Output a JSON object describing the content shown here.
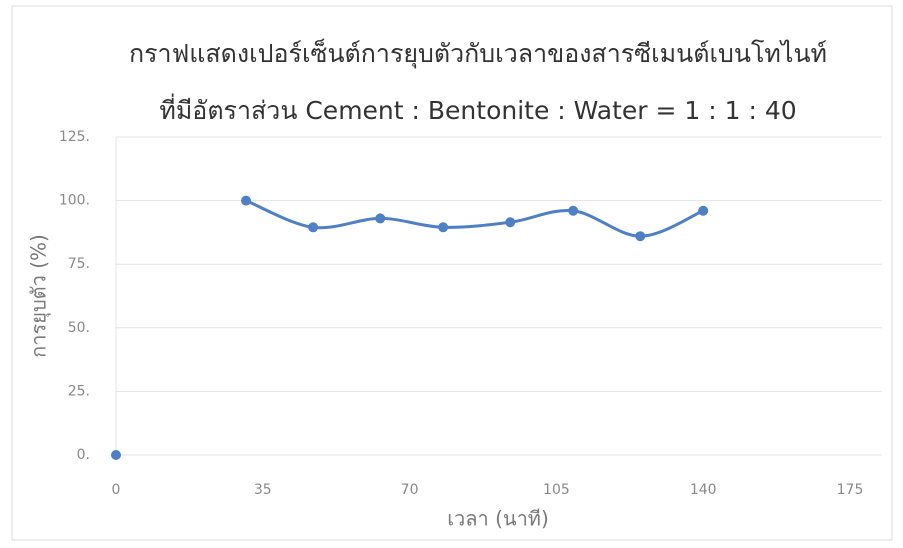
{
  "chart_data": {
    "type": "line",
    "title": "กราฟแสดงเปอร์เซ็นต์การยุบตัวกับเวลาของสารซีเมนต์เบนโทไนท์",
    "subtitle": "ที่มีอัตราส่วน Cement : Bentonite : Water  =  1 : 1 : 40",
    "x_label": "เวลา (นาที)",
    "y_label": "การยุบตัว (%)",
    "series": [
      {
        "color": "#4f7fc4",
        "x": [
          0
        ],
        "values": [
          0
        ]
      },
      {
        "color": "#4f7fc4",
        "x": [
          31,
          47,
          63,
          78,
          94,
          109,
          125,
          140
        ],
        "values": [
          100,
          89.5,
          93,
          89.5,
          91.5,
          96,
          86,
          96
        ]
      }
    ],
    "xlim": [
      0,
      175
    ],
    "xticks": [
      0,
      35,
      70,
      105,
      140,
      175
    ],
    "ylim": [
      0,
      125
    ],
    "yticks": [
      {
        "value": 0,
        "label": "0."
      },
      {
        "value": 25,
        "label": "25."
      },
      {
        "value": 50,
        "label": "50."
      },
      {
        "value": 75,
        "label": "75."
      },
      {
        "value": 100,
        "label": "100."
      },
      {
        "value": 125,
        "label": "125."
      }
    ],
    "grid": true
  }
}
